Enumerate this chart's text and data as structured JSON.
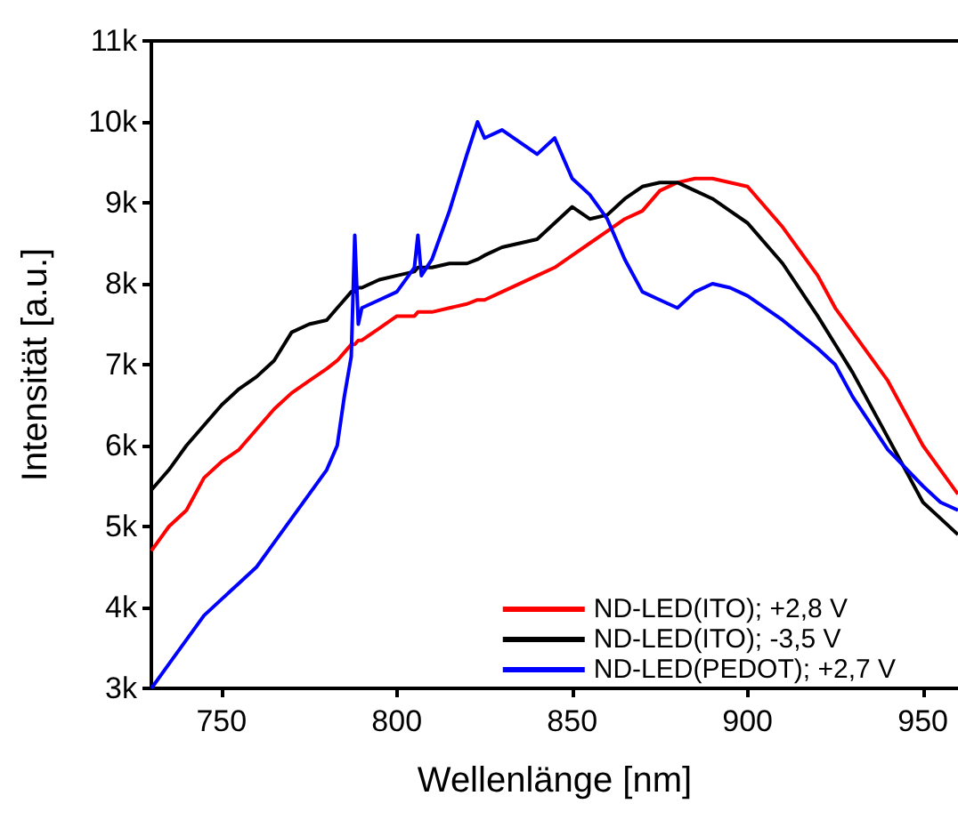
{
  "chart_data": {
    "type": "line",
    "xlabel": "Wellenlänge [nm]",
    "ylabel": "Intensität [a.u.]",
    "xlim": [
      730,
      960
    ],
    "xticks": [
      750,
      800,
      850,
      900,
      950
    ],
    "ylim": [
      3000,
      11000
    ],
    "yticks": [
      {
        "value": 3000,
        "label": "3k"
      },
      {
        "value": 4000,
        "label": "4k"
      },
      {
        "value": 5000,
        "label": "5k"
      },
      {
        "value": 6000,
        "label": "6k"
      },
      {
        "value": 7000,
        "label": "7k"
      },
      {
        "value": 8000,
        "label": "8k"
      },
      {
        "value": 9000,
        "label": "9k"
      },
      {
        "value": 10000,
        "label": "10k"
      },
      {
        "value": 11000,
        "label": "11k"
      }
    ],
    "grid": false,
    "legend": "bottom right",
    "marker": "none",
    "line_style": "solid",
    "x": [
      730,
      735,
      740,
      745,
      750,
      755,
      760,
      765,
      770,
      775,
      780,
      783,
      785,
      787,
      788,
      789,
      790,
      795,
      800,
      805,
      806,
      807,
      810,
      815,
      820,
      823,
      825,
      830,
      840,
      845,
      850,
      855,
      860,
      865,
      870,
      875,
      880,
      885,
      890,
      895,
      900,
      910,
      920,
      925,
      930,
      940,
      950,
      955,
      960
    ],
    "series": [
      {
        "name": "ND-LED(ITO); +2,8 V",
        "color": "#ff0000",
        "values": [
          4700,
          5000,
          5200,
          5600,
          5800,
          5950,
          6200,
          6450,
          6650,
          6800,
          6950,
          7050,
          7150,
          7250,
          7250,
          7300,
          7300,
          7450,
          7600,
          7600,
          7650,
          7650,
          7650,
          7700,
          7750,
          7800,
          7800,
          7900,
          8100,
          8200,
          8350,
          8500,
          8650,
          8800,
          8900,
          9150,
          9250,
          9300,
          9300,
          9250,
          9200,
          8700,
          8100,
          7700,
          7400,
          6800,
          6000,
          5700,
          5400
        ]
      },
      {
        "name": "ND-LED(ITO); -3,5 V",
        "color": "#000000",
        "values": [
          5450,
          5700,
          6000,
          6250,
          6500,
          6700,
          6850,
          7050,
          7400,
          7500,
          7550,
          7700,
          7800,
          7900,
          7900,
          7950,
          7950,
          8050,
          8100,
          8150,
          8200,
          8200,
          8200,
          8250,
          8250,
          8300,
          8350,
          8450,
          8550,
          8750,
          8950,
          8800,
          8850,
          9050,
          9200,
          9250,
          9250,
          9150,
          9050,
          8900,
          8750,
          8250,
          7600,
          7250,
          6900,
          6100,
          5300,
          5100,
          4900
        ]
      },
      {
        "name": "ND-LED(PEDOT); +2,7 V",
        "color": "#0000ff",
        "values": [
          3000,
          3300,
          3600,
          3900,
          4100,
          4300,
          4500,
          4800,
          5100,
          5400,
          5700,
          6000,
          6600,
          7100,
          8600,
          7500,
          7700,
          7800,
          7900,
          8200,
          8600,
          8100,
          8300,
          8900,
          9600,
          10000,
          9800,
          9900,
          9600,
          9800,
          9300,
          9100,
          8800,
          8300,
          7900,
          7800,
          7700,
          7900,
          8000,
          7950,
          7850,
          7550,
          7200,
          7000,
          6600,
          5950,
          5500,
          5300,
          5200
        ]
      }
    ]
  }
}
